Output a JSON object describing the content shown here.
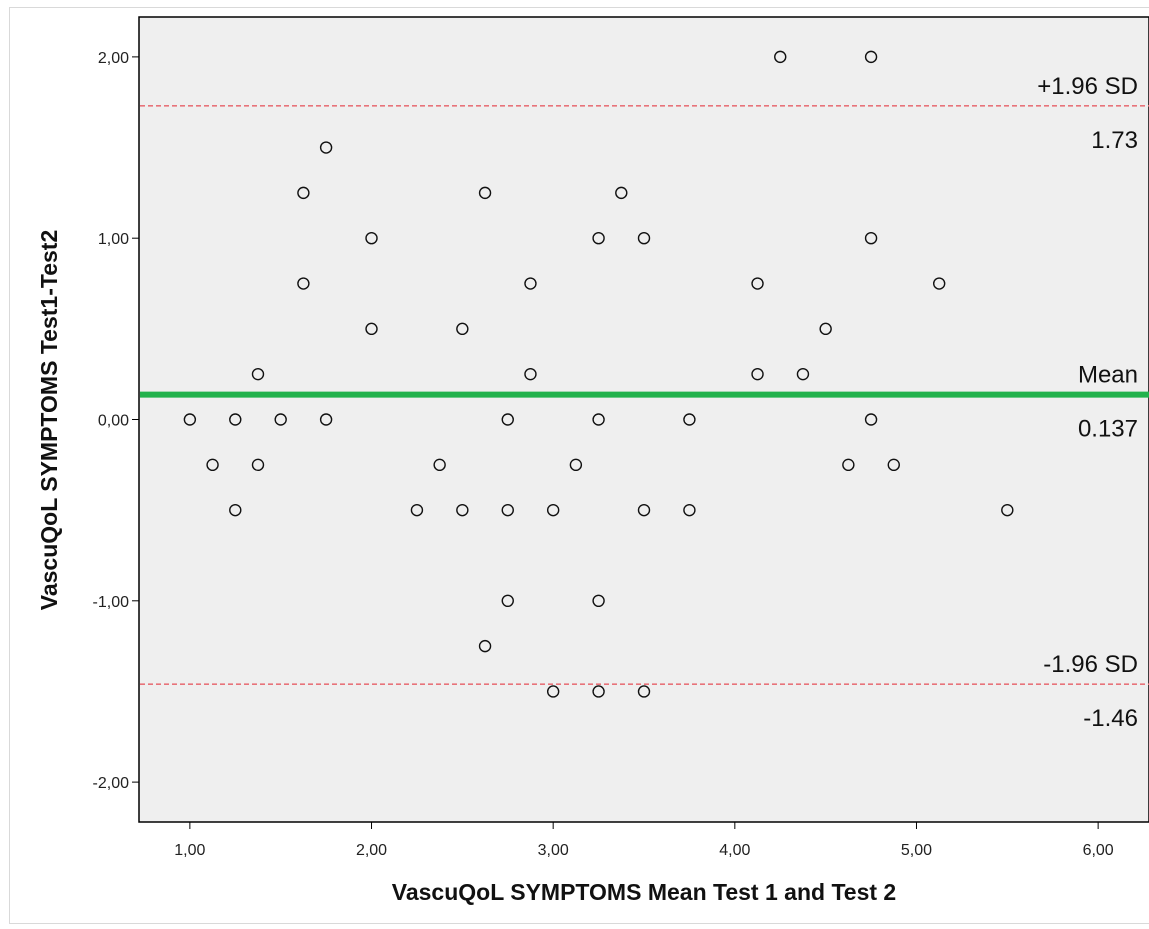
{
  "chart_data": {
    "type": "scatter",
    "xlabel": "VascuQoL SYMPTOMS Mean Test 1 and Test 2",
    "ylabel": "VascuQoL SYMPTOMS Test1-Test2",
    "xlim": [
      0.72,
      6.28
    ],
    "ylim": [
      -2.22,
      2.22
    ],
    "x_ticks": [
      1,
      2,
      3,
      4,
      5,
      6
    ],
    "x_tick_labels": [
      "1,00",
      "2,00",
      "3,00",
      "4,00",
      "5,00",
      "6,00"
    ],
    "y_ticks": [
      -2,
      -1,
      0,
      1,
      2
    ],
    "y_tick_labels": [
      "-2,00",
      "-1,00",
      "0,00",
      "1,00",
      "2,00"
    ],
    "grid": false,
    "reference_lines": [
      {
        "name": "upper",
        "label": "+1.96 SD",
        "value_label": "1.73",
        "y": 1.73,
        "style": "dashed",
        "color": "#e8737a"
      },
      {
        "name": "mean",
        "label": "Mean",
        "value_label": "0.137",
        "y": 0.137,
        "style": "solid",
        "color": "#22b24c"
      },
      {
        "name": "lower",
        "label": "-1.96 SD",
        "value_label": "-1.46",
        "y": -1.46,
        "style": "dashed",
        "color": "#e8737a"
      }
    ],
    "points": [
      [
        4.25,
        2.0
      ],
      [
        4.75,
        2.0
      ],
      [
        1.75,
        1.5
      ],
      [
        1.625,
        1.25
      ],
      [
        2.625,
        1.25
      ],
      [
        3.375,
        1.25
      ],
      [
        2.0,
        1.0
      ],
      [
        3.25,
        1.0
      ],
      [
        3.5,
        1.0
      ],
      [
        4.75,
        1.0
      ],
      [
        1.625,
        0.75
      ],
      [
        2.875,
        0.75
      ],
      [
        4.125,
        0.75
      ],
      [
        5.125,
        0.75
      ],
      [
        2.0,
        0.5
      ],
      [
        2.5,
        0.5
      ],
      [
        4.5,
        0.5
      ],
      [
        1.375,
        0.25
      ],
      [
        2.875,
        0.25
      ],
      [
        4.125,
        0.25
      ],
      [
        4.375,
        0.25
      ],
      [
        1.0,
        0.0
      ],
      [
        1.25,
        0.0
      ],
      [
        1.5,
        0.0
      ],
      [
        1.75,
        0.0
      ],
      [
        2.75,
        0.0
      ],
      [
        3.25,
        0.0
      ],
      [
        3.75,
        0.0
      ],
      [
        4.75,
        0.0
      ],
      [
        1.125,
        -0.25
      ],
      [
        1.375,
        -0.25
      ],
      [
        2.375,
        -0.25
      ],
      [
        3.125,
        -0.25
      ],
      [
        4.625,
        -0.25
      ],
      [
        4.875,
        -0.25
      ],
      [
        1.25,
        -0.5
      ],
      [
        2.25,
        -0.5
      ],
      [
        2.5,
        -0.5
      ],
      [
        2.75,
        -0.5
      ],
      [
        3.0,
        -0.5
      ],
      [
        3.5,
        -0.5
      ],
      [
        3.75,
        -0.5
      ],
      [
        5.5,
        -0.5
      ],
      [
        2.75,
        -1.0
      ],
      [
        3.25,
        -1.0
      ],
      [
        2.625,
        -1.25
      ],
      [
        3.0,
        -1.5
      ],
      [
        3.25,
        -1.5
      ],
      [
        3.5,
        -1.5
      ]
    ],
    "colors": {
      "plot_background": "#efefef",
      "marker_stroke": "#111111",
      "frame": "#000000"
    }
  }
}
